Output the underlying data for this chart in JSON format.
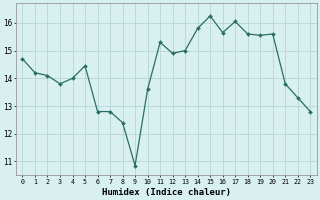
{
  "x": [
    0,
    1,
    2,
    3,
    4,
    5,
    6,
    7,
    8,
    9,
    10,
    11,
    12,
    13,
    14,
    15,
    16,
    17,
    18,
    19,
    20,
    21,
    22,
    23
  ],
  "y": [
    14.7,
    14.2,
    14.1,
    13.8,
    14.0,
    14.45,
    12.8,
    12.8,
    12.4,
    10.85,
    13.6,
    15.3,
    14.9,
    15.0,
    15.8,
    16.25,
    15.65,
    16.05,
    15.6,
    15.55,
    15.6,
    13.8,
    13.3,
    12.8
  ],
  "line_color": "#2a6e64",
  "bg_color": "#d8f0f0",
  "grid_color": "#b8d4d4",
  "xlabel": "Humidex (Indice chaleur)",
  "yticks": [
    11,
    12,
    13,
    14,
    15,
    16
  ],
  "xticks": [
    0,
    1,
    2,
    3,
    4,
    5,
    6,
    7,
    8,
    9,
    10,
    11,
    12,
    13,
    14,
    15,
    16,
    17,
    18,
    19,
    20,
    21,
    22,
    23
  ],
  "ylim": [
    10.5,
    16.7
  ],
  "xlim": [
    -0.5,
    23.5
  ]
}
